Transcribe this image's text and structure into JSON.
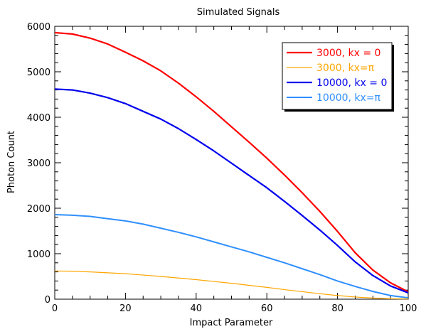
{
  "chart_data": {
    "type": "line",
    "title": "Simulated Signals",
    "xlabel": "Impact Parameter",
    "ylabel": "Photon Count",
    "xlim": [
      0,
      100
    ],
    "ylim": [
      0,
      6000
    ],
    "xticks": [
      0,
      20,
      40,
      60,
      80,
      100
    ],
    "yticks": [
      0,
      1000,
      2000,
      3000,
      4000,
      5000,
      6000
    ],
    "grid": false,
    "legend_position": "top-right",
    "x": [
      0,
      5,
      10,
      15,
      20,
      25,
      30,
      35,
      40,
      45,
      50,
      55,
      60,
      65,
      70,
      75,
      80,
      85,
      90,
      95,
      100
    ],
    "series": [
      {
        "name": "3000, kx = 0",
        "color": "#ff0000",
        "width": 2.2,
        "values": [
          5860,
          5830,
          5740,
          5610,
          5430,
          5240,
          5020,
          4750,
          4450,
          4130,
          3790,
          3450,
          3100,
          2730,
          2340,
          1930,
          1490,
          1020,
          640,
          360,
          160
        ]
      },
      {
        "name": "3000, kx=π",
        "color": "#ffa500",
        "width": 1.2,
        "values": [
          620,
          615,
          600,
          580,
          560,
          530,
          500,
          465,
          430,
          390,
          350,
          305,
          260,
          210,
          165,
          120,
          80,
          48,
          25,
          10,
          5
        ]
      },
      {
        "name": "10000, kx = 0",
        "color": "#0000ee",
        "width": 2.2,
        "values": [
          4620,
          4600,
          4530,
          4430,
          4300,
          4130,
          3960,
          3750,
          3510,
          3260,
          2990,
          2720,
          2450,
          2150,
          1840,
          1520,
          1180,
          820,
          520,
          290,
          140
        ]
      },
      {
        "name": "10000, kx=π",
        "color": "#2f8fff",
        "width": 2.0,
        "values": [
          1860,
          1845,
          1820,
          1770,
          1720,
          1650,
          1560,
          1470,
          1370,
          1260,
          1150,
          1040,
          920,
          800,
          670,
          540,
          400,
          280,
          170,
          80,
          30
        ]
      }
    ]
  }
}
